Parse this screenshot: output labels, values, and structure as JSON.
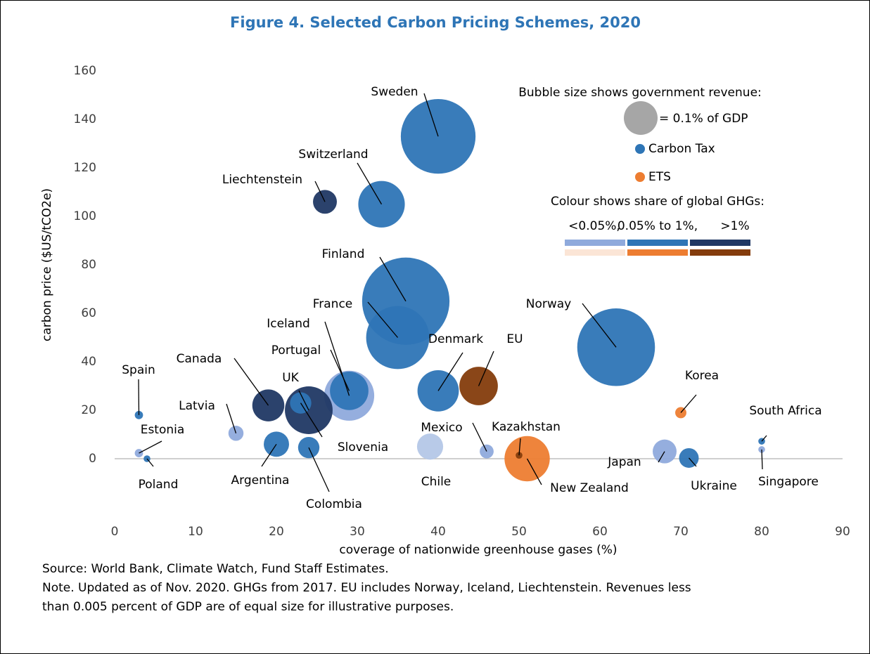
{
  "chart_data": {
    "type": "bubble",
    "title": "Figure 4. Selected Carbon Pricing Schemes, 2020",
    "x_label": "coverage of nationwide greenhouse gases (%)",
    "y_label": "carbon price ($US/tCO2e)",
    "xlim": [
      0,
      90
    ],
    "xticks": [
      0,
      10,
      20,
      30,
      40,
      50,
      60,
      70,
      80,
      90
    ],
    "ylim": [
      0,
      160
    ],
    "yticks": [
      0,
      20,
      40,
      60,
      80,
      100,
      120,
      140,
      160
    ],
    "size_title": "Bubble size shows government revenue:",
    "size_legend": {
      "value": 0.1,
      "label": "= 0.1% of GDP",
      "color": "#a6a6a6"
    },
    "colour_legend": {
      "title": "Colour shows share of global GHGs:",
      "labels": [
        "<0.05%,",
        "0.05% to 1%,",
        ">1%"
      ],
      "tax_colors": [
        "#8faadc",
        "#2e75b6",
        "#203864"
      ],
      "ets_colors": [
        "#fbe5d6",
        "#ed7d31",
        "#843c0c"
      ]
    },
    "series": [
      {
        "name": "Carbon Tax",
        "color": "#2e75b6",
        "labels": [
          "Sweden",
          "Switzerland",
          "Liechtenstein",
          "Finland",
          "France",
          "Norway",
          "Denmark",
          "Iceland",
          "Portugal",
          "Canada",
          "UK",
          "Slovenia",
          "Spain",
          "Latvia",
          "Estonia",
          "Poland",
          "Argentina",
          "Colombia",
          "Chile",
          "Mexico",
          "Japan",
          "Ukraine",
          "South Africa",
          "Singapore"
        ],
        "x": [
          40,
          33,
          26,
          36,
          35,
          62,
          40,
          29,
          29,
          19,
          24,
          23,
          3,
          15,
          3,
          4,
          20,
          24,
          39,
          46,
          68,
          71,
          80,
          80
        ],
        "values": [
          133,
          105,
          106,
          65,
          50,
          46,
          28,
          26,
          28,
          22,
          20,
          23,
          18,
          10.5,
          2.3,
          0,
          6,
          4.6,
          5,
          3,
          3,
          0.3,
          7.2,
          3.8
        ],
        "sizes": [
          0.49,
          0.19,
          0.05,
          0.67,
          0.35,
          0.53,
          0.15,
          0.22,
          0.13,
          0.09,
          0.2,
          0.04,
          0.006,
          0.02,
          0.006,
          0.004,
          0.056,
          0.04,
          0.06,
          0.017,
          0.05,
          0.034,
          0.004,
          0.004
        ],
        "colors": [
          "#2e75b6",
          "#2e75b6",
          "#203864",
          "#2e75b6",
          "#2e75b6",
          "#2e75b6",
          "#2e75b6",
          "#8faadc",
          "#2e75b6",
          "#203864",
          "#203864",
          "#2e75b6",
          "#2e75b6",
          "#8faadc",
          "#8faadc",
          "#2e75b6",
          "#2e75b6",
          "#2e75b6",
          "#b4c7e7",
          "#8faadc",
          "#8faadc",
          "#2e75b6",
          "#2e75b6",
          "#8faadc"
        ]
      },
      {
        "name": "ETS",
        "color": "#ed7d31",
        "labels": [
          "EU",
          "Korea",
          "New Zealand",
          "Kazakhstan"
        ],
        "x": [
          45,
          70,
          51,
          50
        ],
        "values": [
          30,
          19,
          0,
          1.4
        ],
        "sizes": [
          0.13,
          0.011,
          0.18,
          0.004
        ],
        "colors": [
          "#843c0c",
          "#ed7d31",
          "#ed7d31",
          "#843c0c"
        ]
      }
    ],
    "notes": [
      "Source: World Bank, Climate Watch, Fund Staff Estimates.",
      "Note. Updated as of Nov. 2020. GHGs from 2017. EU includes Norway, Iceland, Liechtenstein. Revenues less",
      "than 0.005 percent of GDP are of equal size for illustrative purposes."
    ]
  }
}
